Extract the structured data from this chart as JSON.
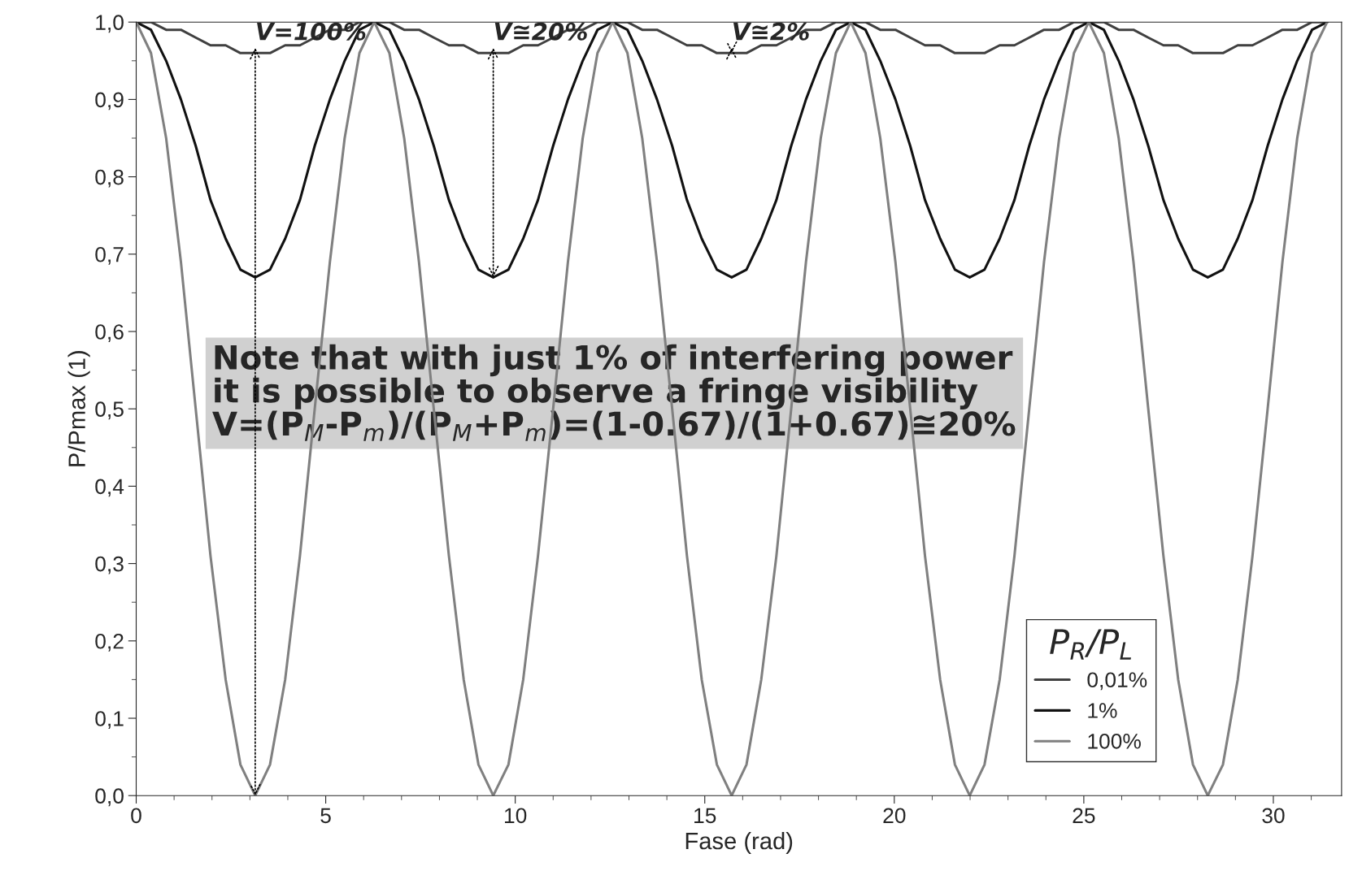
{
  "chart_data": {
    "type": "line",
    "xlabel": "Fase (rad)",
    "ylabel": "P/Pmax (1)",
    "legend_title": "P$_{R}$/P$_{L}$",
    "legend": "bottom right",
    "grid": false,
    "marker": "none",
    "line_style": "solid",
    "xlim": [
      0,
      31.8
    ],
    "ylim": [
      0,
      1.0
    ],
    "xticks": [
      0,
      5,
      10,
      15,
      20,
      25,
      30
    ],
    "yticks": [
      {
        "value": 0,
        "label": "0,0"
      },
      {
        "value": 0.1,
        "label": "0,1"
      },
      {
        "value": 0.2,
        "label": "0,2"
      },
      {
        "value": 0.3,
        "label": "0,3"
      },
      {
        "value": 0.4,
        "label": "0,4"
      },
      {
        "value": 0.5,
        "label": "0,5"
      },
      {
        "value": 0.6,
        "label": "0,6"
      },
      {
        "value": 0.7,
        "label": "0,7"
      },
      {
        "value": 0.8,
        "label": "0,8"
      },
      {
        "value": 0.9,
        "label": "0,9"
      },
      {
        "value": 1.0,
        "label": "1,0"
      }
    ],
    "x": [
      0,
      0.39,
      0.79,
      1.18,
      1.57,
      1.96,
      2.36,
      2.75,
      3.14,
      3.53,
      3.93,
      4.32,
      4.71,
      5.11,
      5.5,
      5.89,
      6.28,
      6.68,
      7.07,
      7.46,
      7.85,
      8.25,
      8.64,
      9.03,
      9.42,
      9.82,
      10.21,
      10.6,
      11.0,
      11.39,
      11.78,
      12.17,
      12.57,
      12.96,
      13.35,
      13.74,
      14.14,
      14.53,
      14.92,
      15.32,
      15.71,
      16.1,
      16.49,
      16.89,
      17.28,
      17.67,
      18.06,
      18.46,
      18.85,
      19.24,
      19.63,
      20.03,
      20.42,
      20.81,
      21.21,
      21.6,
      21.99,
      22.38,
      22.78,
      23.17,
      23.56,
      23.95,
      24.35,
      24.74,
      25.13,
      25.53,
      25.92,
      26.31,
      26.7,
      27.1,
      27.49,
      27.88,
      28.27,
      28.67,
      29.06,
      29.45,
      29.85,
      30.24,
      30.63,
      31.02,
      31.42
    ],
    "series": [
      {
        "name": "0,01%",
        "color": "#404040",
        "values": [
          1,
          1,
          0.99,
          0.99,
          0.98,
          0.97,
          0.97,
          0.96,
          0.96,
          0.96,
          0.97,
          0.97,
          0.98,
          0.99,
          0.99,
          1,
          1,
          1,
          0.99,
          0.99,
          0.98,
          0.97,
          0.97,
          0.96,
          0.96,
          0.96,
          0.97,
          0.97,
          0.98,
          0.99,
          0.99,
          1,
          1,
          1,
          0.99,
          0.99,
          0.98,
          0.97,
          0.97,
          0.96,
          0.96,
          0.96,
          0.97,
          0.97,
          0.98,
          0.99,
          0.99,
          1,
          1,
          1,
          0.99,
          0.99,
          0.98,
          0.97,
          0.97,
          0.96,
          0.96,
          0.96,
          0.97,
          0.97,
          0.98,
          0.99,
          0.99,
          1,
          1,
          1,
          0.99,
          0.99,
          0.98,
          0.97,
          0.97,
          0.96,
          0.96,
          0.96,
          0.97,
          0.97,
          0.98,
          0.99,
          0.99,
          1,
          1
        ]
      },
      {
        "name": "1%",
        "color": "#111111",
        "values": [
          1,
          0.99,
          0.95,
          0.9,
          0.84,
          0.77,
          0.72,
          0.68,
          0.67,
          0.68,
          0.72,
          0.77,
          0.84,
          0.9,
          0.95,
          0.99,
          1,
          0.99,
          0.95,
          0.9,
          0.84,
          0.77,
          0.72,
          0.68,
          0.67,
          0.68,
          0.72,
          0.77,
          0.84,
          0.9,
          0.95,
          0.99,
          1,
          0.99,
          0.95,
          0.9,
          0.84,
          0.77,
          0.72,
          0.68,
          0.67,
          0.68,
          0.72,
          0.77,
          0.84,
          0.9,
          0.95,
          0.99,
          1,
          0.99,
          0.95,
          0.9,
          0.84,
          0.77,
          0.72,
          0.68,
          0.67,
          0.68,
          0.72,
          0.77,
          0.84,
          0.9,
          0.95,
          0.99,
          1,
          0.99,
          0.95,
          0.9,
          0.84,
          0.77,
          0.72,
          0.68,
          0.67,
          0.68,
          0.72,
          0.77,
          0.84,
          0.9,
          0.95,
          0.99,
          1
        ]
      },
      {
        "name": "100%",
        "color": "#808080",
        "values": [
          1,
          0.96,
          0.85,
          0.69,
          0.5,
          0.31,
          0.15,
          0.04,
          0,
          0.04,
          0.15,
          0.31,
          0.5,
          0.69,
          0.85,
          0.96,
          1,
          0.96,
          0.85,
          0.69,
          0.5,
          0.31,
          0.15,
          0.04,
          0,
          0.04,
          0.15,
          0.31,
          0.5,
          0.69,
          0.85,
          0.96,
          1,
          0.96,
          0.85,
          0.69,
          0.5,
          0.31,
          0.15,
          0.04,
          0,
          0.04,
          0.15,
          0.31,
          0.5,
          0.69,
          0.85,
          0.96,
          1,
          0.96,
          0.85,
          0.69,
          0.5,
          0.31,
          0.15,
          0.04,
          0,
          0.04,
          0.15,
          0.31,
          0.5,
          0.69,
          0.85,
          0.96,
          1,
          0.96,
          0.85,
          0.69,
          0.5,
          0.31,
          0.15,
          0.04,
          0,
          0.04,
          0.15,
          0.31,
          0.5,
          0.69,
          0.85,
          0.96,
          1
        ]
      }
    ],
    "annotations": [
      {
        "text": "V=100%",
        "x": 3.14,
        "y": 0
      },
      {
        "text": "V≅20%",
        "x": 9.42,
        "y": 0.67
      },
      {
        "text": "V≅2%",
        "x": 15.71,
        "y": 0.96
      },
      "Note that with just 1% of interfering power\nit is possible to observe a fringe visibility\nV=(P$_{M}$-P$_{m}$)/(P$_{M}$+P$_{m}$)=(1-0.67)/(1+0.67)≅20%"
    ]
  }
}
